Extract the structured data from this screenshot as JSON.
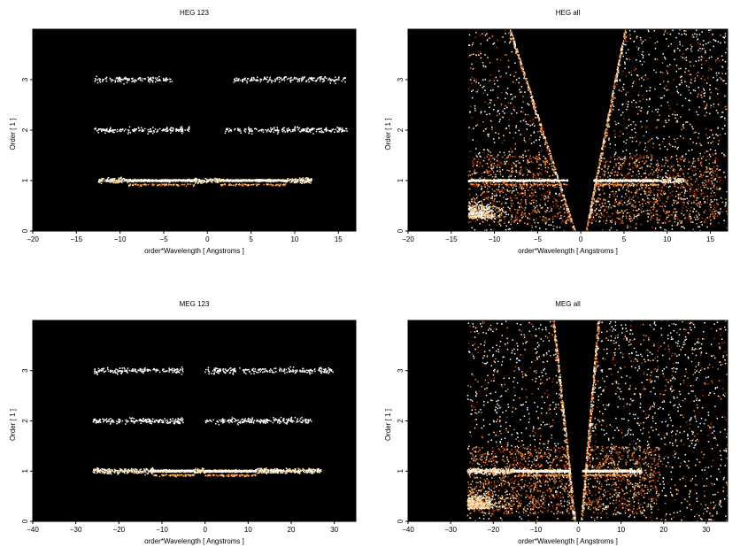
{
  "chart_data": [
    {
      "type": "heatmap",
      "title": "HEG 123",
      "xlabel": "order*Wavelength [ Angstroms ]",
      "ylabel": "Order [ 1 ]",
      "xlim": [
        -20,
        17
      ],
      "ylim": [
        0,
        4
      ],
      "xticks": [
        -20,
        -15,
        -10,
        -5,
        0,
        5,
        10,
        15
      ],
      "yticks": [
        0,
        1,
        2,
        3
      ],
      "background": "#000000",
      "colormap": [
        "#5a0a00",
        "#b83a08",
        "#f08a2a",
        "#ffd890",
        "#ffffff"
      ],
      "bands": [
        {
          "order": 1,
          "x_min": -12.5,
          "x_max": 12,
          "bright_segments": [
            [
              -9,
              -1.5
            ],
            [
              1.5,
              9
            ]
          ],
          "intensity": "high"
        },
        {
          "order": 2,
          "x_min": -13,
          "x_max": 16,
          "gap": [
            -2,
            2
          ],
          "intensity": "low"
        },
        {
          "order": 3,
          "x_min": -13,
          "x_max": 16,
          "gap": [
            -4,
            3
          ],
          "intensity": "low"
        }
      ],
      "zero_order_wedges": false
    },
    {
      "type": "heatmap",
      "title": "HEG all",
      "xlabel": "order*Wavelength [ Angstroms ]",
      "ylabel": "Order [ 1 ]",
      "xlim": [
        -20,
        17
      ],
      "ylim": [
        0,
        4
      ],
      "xticks": [
        -20,
        -15,
        -10,
        -5,
        0,
        5,
        10,
        15
      ],
      "yticks": [
        0,
        1,
        2,
        3
      ],
      "background": "#000000",
      "colormap": [
        "#5a0a00",
        "#b83a08",
        "#f08a2a",
        "#ffd890",
        "#ffffff"
      ],
      "bands": [
        {
          "order": 1,
          "x_min": -13,
          "x_max": 12,
          "bright_segments": [
            [
              -13,
              -1.5
            ],
            [
              1.5,
              9
            ]
          ],
          "intensity": "high"
        }
      ],
      "zero_order_wedges": true,
      "wedge_x_at_top": [
        -7.5,
        4.5
      ],
      "scatter_region": {
        "x_min": -13,
        "x_max": 17
      }
    },
    {
      "type": "heatmap",
      "title": "MEG 123",
      "xlabel": "order*Wavelength [ Angstroms ]",
      "ylabel": "Order [ 1 ]",
      "xlim": [
        -40,
        35
      ],
      "ylim": [
        0,
        4
      ],
      "xticks": [
        -40,
        -30,
        -20,
        -10,
        0,
        10,
        20,
        30
      ],
      "yticks": [
        0,
        1,
        2,
        3
      ],
      "background": "#000000",
      "colormap": [
        "#5a0a00",
        "#b83a08",
        "#f08a2a",
        "#ffd890",
        "#ffffff"
      ],
      "bands": [
        {
          "order": 1,
          "x_min": -26,
          "x_max": 27,
          "bright_segments": [
            [
              -12,
              -2.5
            ],
            [
              0,
              12
            ]
          ],
          "intensity": "high"
        },
        {
          "order": 2,
          "x_min": -26,
          "x_max": 25,
          "gap": [
            -5,
            0
          ],
          "intensity": "low"
        },
        {
          "order": 3,
          "x_min": -26,
          "x_max": 30,
          "gap": [
            -5,
            0
          ],
          "intensity": "low"
        }
      ],
      "zero_order_wedges": false
    },
    {
      "type": "heatmap",
      "title": "MEG all",
      "xlabel": "order*Wavelength [ Angstroms ]",
      "ylabel": "Order [ 1 ]",
      "xlim": [
        -40,
        35
      ],
      "ylim": [
        0,
        4
      ],
      "xticks": [
        -40,
        -30,
        -20,
        -10,
        0,
        10,
        20,
        30
      ],
      "yticks": [
        0,
        1,
        2,
        3
      ],
      "background": "#000000",
      "colormap": [
        "#5a0a00",
        "#b83a08",
        "#f08a2a",
        "#ffd890",
        "#ffffff"
      ],
      "bands": [
        {
          "order": 1,
          "x_min": -26,
          "x_max": 15,
          "bright_segments": [
            [
              -15,
              -2
            ],
            [
              1,
              12
            ]
          ],
          "intensity": "high"
        }
      ],
      "zero_order_wedges": true,
      "wedge_x_at_top": [
        -5,
        4
      ],
      "scatter_region": {
        "x_min": -26,
        "x_max": 35
      }
    }
  ]
}
